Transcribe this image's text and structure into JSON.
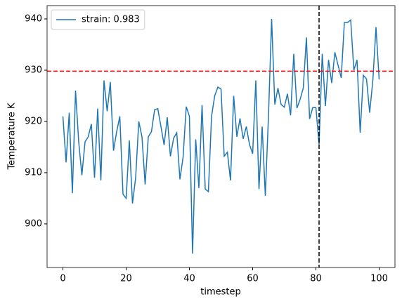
{
  "chart_data": {
    "type": "line",
    "xlabel": "timestep",
    "ylabel": "Temperature K",
    "x": [
      0,
      1,
      2,
      3,
      4,
      5,
      6,
      7,
      8,
      9,
      10,
      11,
      12,
      13,
      14,
      15,
      16,
      17,
      18,
      19,
      20,
      21,
      22,
      23,
      24,
      25,
      26,
      27,
      28,
      29,
      30,
      31,
      32,
      33,
      34,
      35,
      36,
      37,
      38,
      39,
      40,
      41,
      42,
      43,
      44,
      45,
      46,
      47,
      48,
      49,
      50,
      51,
      52,
      53,
      54,
      55,
      56,
      57,
      58,
      59,
      60,
      61,
      62,
      63,
      64,
      65,
      66,
      67,
      68,
      69,
      70,
      71,
      72,
      73,
      74,
      75,
      76,
      77,
      78,
      79,
      80,
      81,
      82,
      83,
      84,
      85,
      86,
      87,
      88,
      89,
      90,
      91,
      92,
      93,
      94,
      95,
      96,
      97,
      98,
      99,
      100
    ],
    "series": [
      {
        "name": "strain: 0.983",
        "color": "#1f77b4",
        "values": [
          921,
          912,
          921.7,
          906,
          926,
          916,
          909.5,
          916,
          917,
          919.5,
          909,
          922.5,
          908.5,
          928,
          922,
          927.7,
          914.3,
          918,
          921,
          905.8,
          905,
          916.3,
          904,
          909,
          920,
          917,
          907.7,
          917,
          918,
          922.3,
          922.5,
          919,
          915.4,
          920.8,
          913.2,
          916.7,
          917.8,
          908.7,
          913,
          922.9,
          921,
          894.2,
          916.5,
          907,
          923.2,
          906.8,
          906.3,
          921,
          925,
          926.7,
          926.3,
          913.2,
          914,
          908.5,
          925,
          917,
          920.6,
          916.6,
          919,
          915.5,
          913.7,
          928,
          906.8,
          919,
          905.5,
          921,
          940,
          923.3,
          926.5,
          923.3,
          922.8,
          925.4,
          921.2,
          933.2,
          922.6,
          924.3,
          926.5,
          936.4,
          920.5,
          922.7,
          922.7,
          915.5,
          933.2,
          923,
          932,
          927.5,
          933.5,
          931,
          928.5,
          939.3,
          939.3,
          939.8,
          930,
          932,
          917.8,
          929,
          928.3,
          921.7,
          928,
          938.4,
          928.2
        ]
      }
    ],
    "xlim": [
      -5,
      105
    ],
    "xticks": [
      0,
      20,
      40,
      60,
      80,
      100
    ],
    "ylim": [
      891.5,
      942.6
    ],
    "yticks": [
      900,
      910,
      920,
      930,
      940
    ],
    "axhline": {
      "value": 929.8,
      "color": "#ff0000"
    },
    "axvline": {
      "value": 81,
      "color": "#000000"
    },
    "legend": "upper left"
  }
}
